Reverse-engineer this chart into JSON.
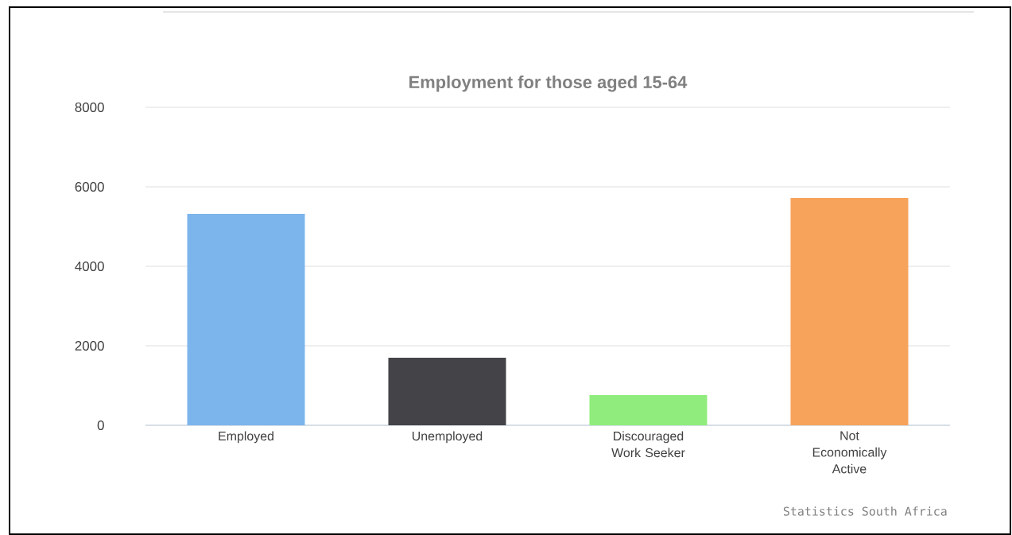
{
  "chart_data": {
    "type": "bar",
    "title": "Employment for those aged 15-64",
    "categories": [
      "Employed",
      "Unemployed",
      "Discouraged Work Seeker",
      "Not Economically Active"
    ],
    "values": [
      5320,
      1700,
      760,
      5720
    ],
    "colors": [
      "#7cb5ec",
      "#434348",
      "#90ed7d",
      "#f7a35c"
    ],
    "ylim": [
      0,
      8000
    ],
    "yticks": [
      0,
      2000,
      4000,
      6000,
      8000
    ],
    "grid": "y",
    "annotations": [
      "Statistics South Africa"
    ]
  }
}
